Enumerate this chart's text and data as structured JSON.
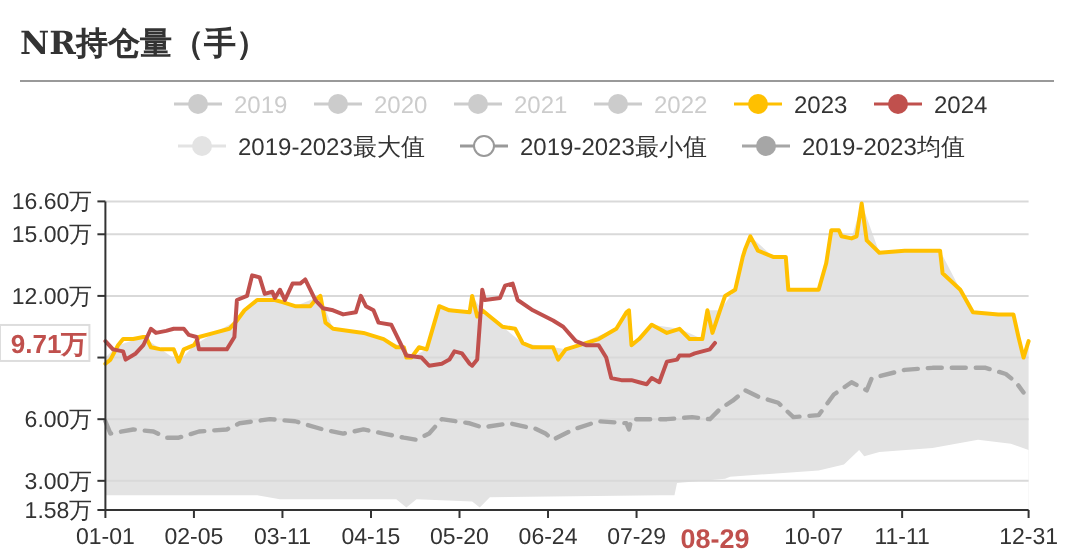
{
  "chart_data": {
    "type": "line",
    "title": "NR持仓量（手）",
    "xlim": [
      "--01-01",
      "--12-31"
    ],
    "xticks": [
      {
        "value": "--01-01",
        "label": "01-01"
      },
      {
        "value": "--02-05",
        "label": "02-05"
      },
      {
        "value": "--03-11",
        "label": "03-11"
      },
      {
        "value": "--04-15",
        "label": "04-15"
      },
      {
        "value": "--05-20",
        "label": "05-20"
      },
      {
        "value": "--06-24",
        "label": "06-24"
      },
      {
        "value": "--07-29",
        "label": "07-29"
      },
      {
        "value": "--10-07",
        "label": "10-07"
      },
      {
        "value": "--11-11",
        "label": "11-11"
      },
      {
        "value": "--12-31",
        "label": "12-31"
      }
    ],
    "ylim": [
      1.58,
      16.6
    ],
    "yticks": [
      {
        "value": 1.58,
        "label": "1.58万"
      },
      {
        "value": 3,
        "label": "3.00万"
      },
      {
        "value": 6,
        "label": "6.00万"
      },
      {
        "value": 9,
        "label": null
      },
      {
        "value": 12,
        "label": "12.00万"
      },
      {
        "value": 15,
        "label": "15.00万"
      },
      {
        "value": 16.6,
        "label": "16.60万"
      }
    ],
    "grid": "y",
    "legend": "top",
    "annotations": [
      "9.71万",
      "08-29"
    ],
    "series": [
      {
        "name": "2019",
        "color": "#cccccc"
      },
      {
        "name": "2020",
        "color": "#cccccc"
      },
      {
        "name": "2021",
        "color": "#cccccc"
      },
      {
        "name": "2022",
        "color": "#cccccc"
      },
      {
        "name": "2023",
        "color": "#ffc000",
        "x": [
          "--01-01",
          "--01-03",
          "--01-06",
          "--01-08",
          "--01-12",
          "--01-16",
          "--01-17",
          "--01-19",
          "--01-23",
          "--01-28",
          "--01-30",
          "--02-01",
          "--02-05",
          "--02-07",
          "--02-13",
          "--02-19",
          "--02-22",
          "--02-25",
          "--03-01",
          "--03-06",
          "--03-08",
          "--03-11",
          "--03-16",
          "--03-22",
          "--03-24",
          "--03-26",
          "--03-28",
          "--03-31",
          "--04-12",
          "--04-20",
          "--04-25",
          "--04-28",
          "--04-29",
          "--05-01",
          "--05-04",
          "--05-07",
          "--05-12",
          "--05-16",
          "--05-24",
          "--05-25",
          "--05-27",
          "--05-29",
          "--06-01",
          "--06-06",
          "--06-11",
          "--06-14",
          "--06-18",
          "--06-26",
          "--06-28",
          "--07-01",
          "--07-14",
          "--07-21",
          "--07-25",
          "--07-26",
          "--07-27",
          "--07-30",
          "--08-04",
          "--08-10",
          "--08-15",
          "--08-19",
          "--08-24",
          "--08-26",
          "--08-28",
          "--08-31",
          "--09-02",
          "--09-06",
          "--09-09",
          "--09-10",
          "--09-12",
          "--09-15",
          "--09-21",
          "--09-26",
          "--09-27",
          "--10-09",
          "--10-12",
          "--10-14",
          "--10-17",
          "--10-18",
          "--10-22",
          "--10-24",
          "--10-26",
          "--10-28",
          "--11-02",
          "--11-12",
          "--11-26",
          "--11-27",
          "--12-04",
          "--12-09",
          "--12-19",
          "--12-25",
          "--12-27",
          "--12-29",
          "--12-31"
        ],
        "values": [
          8.7,
          8.9,
          9.6,
          9.9,
          9.9,
          10.0,
          10.0,
          9.5,
          9.4,
          9.4,
          8.8,
          9.4,
          9.6,
          10.0,
          10.2,
          10.4,
          10.8,
          11.3,
          11.8,
          11.8,
          11.8,
          11.7,
          11.5,
          11.5,
          11.8,
          12.0,
          10.7,
          10.4,
          10.2,
          9.9,
          9.5,
          9.5,
          9.0,
          9.0,
          9.5,
          9.4,
          11.5,
          11.3,
          11.2,
          12.0,
          11.0,
          11.3,
          11.0,
          10.5,
          10.4,
          9.7,
          9.5,
          9.5,
          8.9,
          9.4,
          9.9,
          10.4,
          11.2,
          11.3,
          9.6,
          9.9,
          10.6,
          10.2,
          10.4,
          9.9,
          9.9,
          11.3,
          10.2,
          11.3,
          12.0,
          12.3,
          13.9,
          14.3,
          14.9,
          14.2,
          13.9,
          13.9,
          12.3,
          12.3,
          13.6,
          15.2,
          15.2,
          14.9,
          14.8,
          14.9,
          16.5,
          14.7,
          14.1,
          14.2,
          14.2,
          13.1,
          12.3,
          11.2,
          11.1,
          11.1,
          10.0,
          9.0,
          9.8
        ]
      },
      {
        "name": "2024",
        "color": "#c0504d",
        "x": [
          "--01-01",
          "--01-04",
          "--01-08",
          "--01-09",
          "--01-13",
          "--01-16",
          "--01-19",
          "--01-21",
          "--01-25",
          "--01-28",
          "--02-01",
          "--02-03",
          "--02-06",
          "--02-07",
          "--02-18",
          "--02-21",
          "--02-22",
          "--02-26",
          "--02-28",
          "--03-02",
          "--03-04",
          "--03-07",
          "--03-08",
          "--03-10",
          "--03-12",
          "--03-15",
          "--03-18",
          "--03-20",
          "--03-22",
          "--03-24",
          "--03-27",
          "--03-31",
          "--04-04",
          "--04-09",
          "--04-11",
          "--04-13",
          "--04-16",
          "--04-18",
          "--04-23",
          "--04-25",
          "--04-29",
          "--05-05",
          "--05-08",
          "--05-13",
          "--05-16",
          "--05-18",
          "--05-21",
          "--05-24",
          "--05-25",
          "--05-27",
          "--05-29",
          "--05-30",
          "--06-05",
          "--06-07",
          "--06-10",
          "--06-12",
          "--06-18",
          "--06-26",
          "--06-30",
          "--07-05",
          "--07-09",
          "--07-14",
          "--07-17",
          "--07-19",
          "--07-23",
          "--07-27",
          "--07-30",
          "--08-02",
          "--08-04",
          "--08-07",
          "--08-10",
          "--08-14",
          "--08-15",
          "--08-19",
          "--08-21",
          "--08-24",
          "--08-27",
          "--08-29"
        ],
        "values": [
          9.8,
          9.4,
          9.3,
          8.9,
          9.2,
          9.6,
          10.4,
          10.2,
          10.3,
          10.4,
          10.4,
          10.1,
          10.0,
          9.4,
          9.4,
          10.0,
          11.8,
          12.0,
          13.0,
          12.9,
          12.1,
          12.2,
          11.9,
          12.3,
          11.8,
          12.6,
          12.6,
          12.8,
          12.3,
          11.8,
          11.4,
          11.3,
          11.1,
          11.2,
          12.0,
          11.5,
          11.3,
          10.7,
          10.6,
          10.1,
          9.1,
          9.0,
          8.6,
          8.7,
          8.9,
          9.3,
          9.2,
          8.7,
          8.6,
          8.9,
          12.3,
          11.8,
          11.9,
          12.5,
          12.6,
          11.8,
          11.3,
          10.8,
          10.5,
          9.8,
          9.6,
          9.6,
          9.0,
          8.0,
          7.9,
          7.9,
          7.8,
          7.7,
          8.0,
          7.8,
          8.8,
          8.9,
          9.1,
          9.1,
          9.2,
          9.3,
          9.4,
          9.71
        ]
      },
      {
        "name": "2019-2023最大值",
        "type": "area",
        "color": "#e3e3e3",
        "x": [
          "--01-01",
          "--01-06",
          "--01-16",
          "--01-23",
          "--01-30",
          "--02-05",
          "--02-13",
          "--02-22",
          "--03-01",
          "--03-08",
          "--03-16",
          "--03-26",
          "--03-31",
          "--04-20",
          "--04-28",
          "--05-01",
          "--05-07",
          "--05-12",
          "--05-24",
          "--05-25",
          "--05-29",
          "--06-06",
          "--06-14",
          "--06-26",
          "--07-01",
          "--07-21",
          "--07-26",
          "--07-27",
          "--08-04",
          "--08-15",
          "--08-24",
          "--08-26",
          "--08-31",
          "--09-06",
          "--09-12",
          "--09-21",
          "--09-26",
          "--09-27",
          "--10-09",
          "--10-14",
          "--10-17",
          "--10-22",
          "--10-26",
          "--11-02",
          "--11-26",
          "--12-04",
          "--12-09",
          "--12-25",
          "--12-29",
          "--12-31"
        ],
        "values": [
          9.0,
          9.6,
          10.0,
          9.4,
          8.8,
          9.6,
          10.2,
          10.8,
          11.8,
          11.8,
          11.5,
          12.0,
          10.4,
          9.9,
          9.5,
          9.0,
          9.4,
          11.5,
          11.2,
          12.0,
          11.3,
          10.5,
          9.7,
          9.5,
          9.4,
          10.4,
          11.3,
          9.6,
          10.6,
          10.4,
          9.9,
          11.3,
          11.3,
          12.3,
          14.9,
          13.9,
          13.9,
          12.3,
          12.3,
          15.2,
          15.2,
          14.8,
          16.5,
          14.1,
          14.2,
          12.3,
          11.2,
          11.1,
          9.0,
          9.8
        ]
      },
      {
        "name": "2019-2023最小值",
        "type": "area",
        "color": "#ffffff",
        "x": [
          "--01-01",
          "--03-01",
          "--03-10",
          "--04-25",
          "--04-29",
          "--05-03",
          "--05-25",
          "--05-28",
          "--06-01",
          "--08-08",
          "--08-13",
          "--08-14",
          "--09-02",
          "--09-04",
          "--10-09",
          "--10-19",
          "--10-25",
          "--10-27",
          "--11-02",
          "--11-23",
          "--12-11",
          "--12-24",
          "--12-31"
        ],
        "values": [
          2.3,
          2.3,
          2.1,
          2.1,
          1.7,
          2.1,
          2.0,
          1.7,
          2.2,
          2.3,
          2.3,
          2.9,
          3.1,
          3.2,
          3.5,
          3.8,
          4.5,
          4.2,
          4.4,
          4.6,
          5.0,
          4.8,
          4.5
        ]
      },
      {
        "name": "2019-2023均值",
        "color": "#a6a6a6",
        "line_style": "dashed",
        "x": [
          "--01-01",
          "--01-03",
          "--01-12",
          "--01-20",
          "--01-25",
          "--01-30",
          "--02-07",
          "--02-18",
          "--02-23",
          "--03-06",
          "--03-16",
          "--03-27",
          "--04-04",
          "--04-12",
          "--04-20",
          "--04-28",
          "--05-03",
          "--05-08",
          "--05-13",
          "--05-24",
          "--05-29",
          "--06-09",
          "--06-16",
          "--06-18",
          "--06-23",
          "--06-26",
          "--07-04",
          "--07-14",
          "--07-25",
          "--07-26",
          "--07-27",
          "--08-10",
          "--08-20",
          "--08-27",
          "--08-31",
          "--09-05",
          "--09-10",
          "--09-15",
          "--09-23",
          "--09-29",
          "--10-09",
          "--10-15",
          "--10-22",
          "--10-28",
          "--10-30",
          "--11-12",
          "--11-23",
          "--12-14",
          "--12-22",
          "--12-26",
          "--12-29"
        ],
        "values": [
          5.9,
          5.3,
          5.5,
          5.4,
          5.1,
          5.1,
          5.4,
          5.5,
          5.8,
          6.0,
          5.9,
          5.5,
          5.3,
          5.5,
          5.3,
          5.1,
          5.0,
          5.3,
          6.0,
          5.8,
          5.6,
          5.8,
          5.6,
          5.6,
          5.3,
          5.0,
          5.5,
          5.9,
          5.8,
          5.5,
          6.0,
          6.0,
          6.1,
          6.0,
          6.5,
          6.9,
          7.4,
          7.1,
          6.8,
          6.1,
          6.2,
          7.2,
          7.8,
          7.4,
          8.0,
          8.4,
          8.5,
          8.5,
          8.2,
          7.8,
          7.3
        ]
      }
    ]
  }
}
